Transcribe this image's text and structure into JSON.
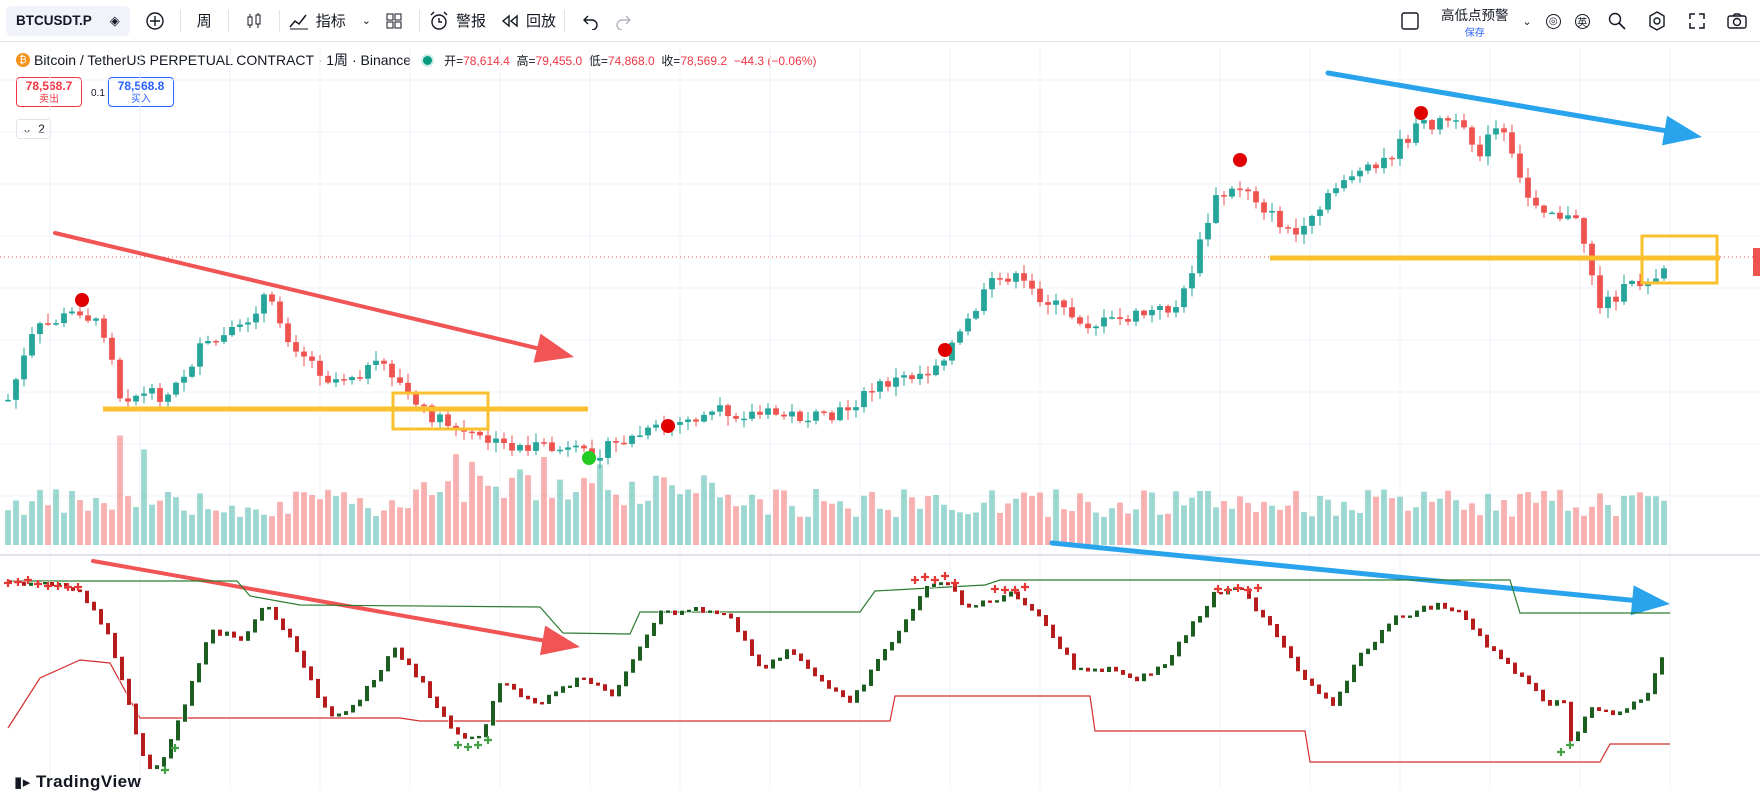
{
  "toolbar": {
    "symbol": "BTCUSDT.P",
    "interval": "周",
    "indicators_label": "指标",
    "alert_label": "警报",
    "replay_label": "回放",
    "layout_name": "高低点预警",
    "layout_status": "保存"
  },
  "legend": {
    "name": "Bitcoin / TetherUS PERPETUAL CONTRACT · 1周 · Binance",
    "open_k": "开=",
    "open_v": "78,614.4",
    "high_k": "高=",
    "high_v": "79,455.0",
    "low_k": "低=",
    "low_v": "74,868.0",
    "close_k": "收=",
    "close_v": "78,569.2",
    "change": "−44.3 (−0.06%)"
  },
  "trade": {
    "sell_price": "78,568.7",
    "sell_label": "卖出",
    "spread": "0.1",
    "buy_price": "78,568.8",
    "buy_label": "买入",
    "collapse_count": "2"
  },
  "watermark": "TradingView",
  "colors": {
    "up": "#26a69a",
    "down": "#ef5350",
    "osc_up": "#1b5e20",
    "osc_down": "#b71c1c",
    "annot_red": "#f05454",
    "annot_blue": "#29a3ec",
    "annot_yellow": "#fbc02d"
  },
  "chart_data": {
    "type": "candlestick",
    "symbol": "BTCUSDT.P",
    "interval": "1W",
    "last_candle": {
      "open": 78614.4,
      "high": 79455.0,
      "low": 74868.0,
      "close": 78569.2
    },
    "annotations": [
      "red down-arrow upper-left",
      "blue down-arrow upper-right",
      "yellow horizontal support lines",
      "yellow highlight boxes",
      "red/green pivot dots"
    ]
  }
}
